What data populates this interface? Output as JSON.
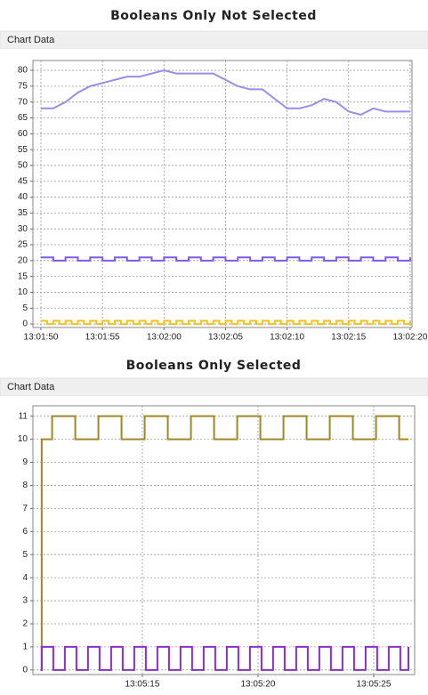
{
  "chart_data": [
    {
      "type": "line",
      "title": "Booleans Only Not Selected",
      "panel_title": "Chart Data",
      "xlim": [
        46909.35,
        46940.15
      ],
      "ylim": [
        -1.1,
        83.1
      ],
      "grid": true,
      "xticks": [
        {
          "value": 46910,
          "label": "13:01:50"
        },
        {
          "value": 46915,
          "label": "13:01:55"
        },
        {
          "value": 46920,
          "label": "13:02:00"
        },
        {
          "value": 46925,
          "label": "13:02:05"
        },
        {
          "value": 46930,
          "label": "13:02:10"
        },
        {
          "value": 46935,
          "label": "13:02:15"
        },
        {
          "value": 46940,
          "label": "13:02:20"
        }
      ],
      "yticks": [
        0,
        5,
        10,
        15,
        20,
        25,
        30,
        35,
        40,
        45,
        50,
        55,
        60,
        65,
        70,
        75,
        80
      ],
      "series": [
        {
          "color": "#9b8cec",
          "step": false,
          "x": [
            46910,
            46911,
            46912,
            46913,
            46914,
            46915,
            46916,
            46917,
            46918,
            46919,
            46920,
            46921,
            46922,
            46923,
            46924,
            46925,
            46926,
            46927,
            46928,
            46929,
            46930,
            46931,
            46932,
            46933,
            46934,
            46935,
            46936,
            46937,
            46938,
            46939,
            46940
          ],
          "values": [
            68,
            68,
            70,
            73,
            75,
            76,
            77,
            78,
            78,
            79,
            80,
            79,
            79,
            79,
            79,
            77,
            75,
            74,
            74,
            71,
            68,
            68,
            69,
            71,
            70,
            67,
            66,
            68,
            67,
            67,
            67
          ]
        },
        {
          "color": "#7f5ae6",
          "step": true,
          "x": [
            46910,
            46911,
            46912,
            46913,
            46914,
            46915,
            46916,
            46917,
            46918,
            46919,
            46920,
            46921,
            46922,
            46923,
            46924,
            46925,
            46926,
            46927,
            46928,
            46929,
            46930,
            46931,
            46932,
            46933,
            46934,
            46935,
            46936,
            46937,
            46938,
            46939,
            46940
          ],
          "values": [
            21,
            20,
            21,
            20,
            21,
            20,
            21,
            20,
            21,
            20,
            21,
            20,
            21,
            20,
            21,
            20,
            21,
            20,
            21,
            20,
            21,
            20,
            21,
            20,
            21,
            20,
            21,
            20,
            21,
            20,
            21
          ]
        },
        {
          "color": "#f2c21a",
          "step": true,
          "x": [
            46910,
            46910.5,
            46911,
            46911.5,
            46912,
            46912.5,
            46913,
            46913.5,
            46914,
            46914.5,
            46915,
            46915.5,
            46916,
            46916.5,
            46917,
            46917.5,
            46918,
            46918.5,
            46919,
            46919.5,
            46920,
            46920.5,
            46921,
            46921.5,
            46922,
            46922.5,
            46923,
            46923.5,
            46924,
            46924.5,
            46925,
            46925.5,
            46926,
            46926.5,
            46927,
            46927.5,
            46928,
            46928.5,
            46929,
            46929.5,
            46930,
            46930.5,
            46931,
            46931.5,
            46932,
            46932.5,
            46933,
            46933.5,
            46934,
            46934.5,
            46935,
            46935.5,
            46936,
            46936.5,
            46937,
            46937.5,
            46938,
            46938.5,
            46939,
            46939.5,
            46940
          ],
          "values": [
            1,
            0,
            1,
            0,
            1,
            0,
            1,
            0,
            1,
            0,
            1,
            0,
            1,
            0,
            1,
            0,
            1,
            0,
            1,
            0,
            1,
            0,
            1,
            0,
            1,
            0,
            1,
            0,
            1,
            0,
            1,
            0,
            1,
            0,
            1,
            0,
            1,
            0,
            1,
            0,
            1,
            0,
            1,
            0,
            1,
            0,
            1,
            0,
            1,
            0,
            1,
            0,
            1,
            0,
            1,
            0,
            1,
            0,
            1,
            0,
            1
          ]
        }
      ]
    },
    {
      "type": "line",
      "title": "Booleans Only Selected",
      "panel_title": "Chart Data",
      "xlim": [
        47110.27,
        47126.77
      ],
      "ylim": [
        -0.2,
        11.45
      ],
      "grid": true,
      "xticks": [
        {
          "value": 47115,
          "label": "13:05:15"
        },
        {
          "value": 47120,
          "label": "13:05:20"
        },
        {
          "value": 47125,
          "label": "13:05:25"
        }
      ],
      "yticks": [
        0,
        1,
        2,
        3,
        4,
        5,
        6,
        7,
        8,
        9,
        10,
        11
      ],
      "series": [
        {
          "color": "#a08828",
          "step": true,
          "x": [
            47110.6,
            47110.65,
            47111.1,
            47112.1,
            47113.1,
            47114.1,
            47115.1,
            47116.1,
            47117.1,
            47118.1,
            47119.1,
            47120.1,
            47121.1,
            47122.1,
            47123.1,
            47124.1,
            47125.1,
            47126.1,
            47126.5
          ],
          "values": [
            0,
            10,
            11,
            10,
            11,
            10,
            11,
            10,
            11,
            10,
            11,
            10,
            11,
            10,
            11,
            10,
            11,
            10,
            10
          ]
        },
        {
          "color": "#8b2fc9",
          "step": true,
          "x": [
            47110.6,
            47110.65,
            47111.15,
            47111.65,
            47112.15,
            47112.65,
            47113.15,
            47113.65,
            47114.15,
            47114.65,
            47115.15,
            47115.65,
            47116.15,
            47116.65,
            47117.15,
            47117.65,
            47118.15,
            47118.65,
            47119.15,
            47119.65,
            47120.15,
            47120.65,
            47121.15,
            47121.65,
            47122.15,
            47122.65,
            47123.15,
            47123.65,
            47124.15,
            47124.65,
            47125.15,
            47125.65,
            47126.15,
            47126.5
          ],
          "values": [
            0,
            1,
            0,
            1,
            0,
            1,
            0,
            1,
            0,
            1,
            0,
            1,
            0,
            1,
            0,
            1,
            0,
            1,
            0,
            1,
            0,
            1,
            0,
            1,
            0,
            1,
            0,
            1,
            0,
            1,
            0,
            1,
            0,
            1
          ]
        }
      ]
    }
  ]
}
